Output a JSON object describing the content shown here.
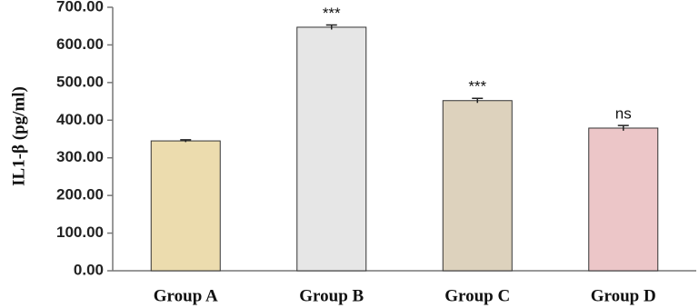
{
  "chart_data": {
    "type": "bar",
    "y_label": "IL1-β (pg/ml)",
    "categories": [
      "Group A",
      "Group B",
      "Group C",
      "Group D"
    ],
    "values": [
      345,
      647,
      452,
      379
    ],
    "errors": [
      3,
      6,
      6,
      7
    ],
    "annotations": [
      null,
      "***",
      "***",
      "ns"
    ],
    "colors": [
      "#ecdcae",
      "#e6e6e6",
      "#ddd2bd",
      "#ecc6c8"
    ],
    "ylim": [
      0,
      700
    ],
    "yticks": [
      {
        "value": 0,
        "label": "0.00"
      },
      {
        "value": 100,
        "label": "100.00"
      },
      {
        "value": 200,
        "label": "200.00"
      },
      {
        "value": 300,
        "label": "300.00"
      },
      {
        "value": 400,
        "label": "400.00"
      },
      {
        "value": 500,
        "label": "500.00"
      },
      {
        "value": 600,
        "label": "600.00"
      },
      {
        "value": 700,
        "label": "700.00"
      }
    ]
  }
}
